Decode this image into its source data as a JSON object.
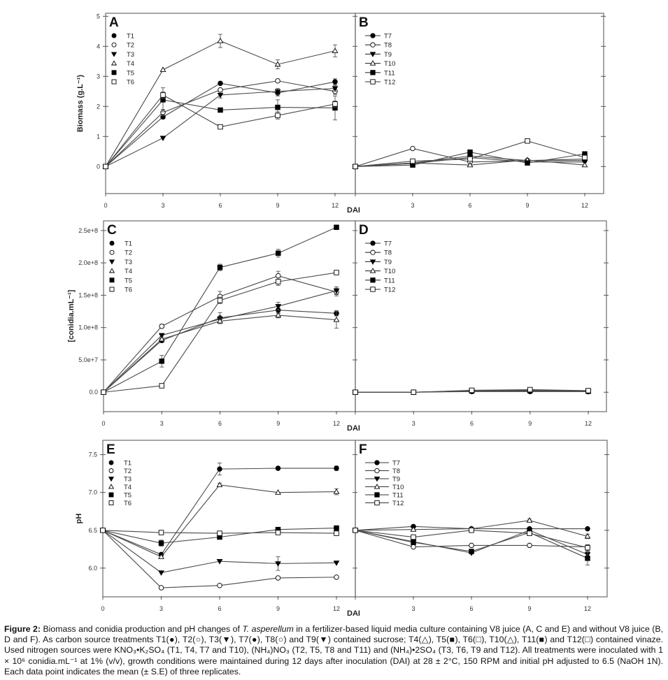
{
  "caption": {
    "label": "Figure 2:",
    "part1": " Biomass and conidia production and pH changes of ",
    "species": "T. asperellum",
    "part2": " in a fertilizer-based liquid media culture containing V8 juice (A, C and E) and without V8 juice (B, D and F). As carbon source treatments  T1(●), T2(○), T3(▼), T7(●), T8(○) and T9(▼) contained sucrose; T4(△), T5(■), T6(□), T10(△), T11(■) and T12(□) contained vinaze. Used nitrogen sources were KNO₃•K₂SO₄ (T1, T4, T7 and T10), (NH₄)NO₃ (T2, T5, T8 and T11) and (NH₄)•2SO₄ (T3, T6, T9 and T12). All treatments were inoculated with 1 × 10⁶ conidia.mL⁻¹ at 1% (v/v), growth conditions were maintained during 12 days after inoculation (DAI) at 28 ± 2°C, 150 RPM and initial pH adjusted to 6.5 (NaOH 1N). Each data point indicates the mean (± S.E) of three replicates."
  },
  "chart_data": [
    {
      "panel": "A",
      "type": "line",
      "title": "",
      "xlabel": "DAI",
      "ylabel": "Biomass (g.L⁻¹)",
      "x": [
        0,
        3,
        6,
        9,
        12
      ],
      "xticks": [
        "0",
        "3",
        "6",
        "9",
        "12"
      ],
      "ylim": [
        -0.9,
        5.1
      ],
      "yticks": [
        0,
        1,
        2,
        3,
        4,
        5
      ],
      "ytick_labels": [
        "0",
        "1",
        "2",
        "3",
        "4",
        "5"
      ],
      "legend": "top-left",
      "legend_style": "marker",
      "series": [
        {
          "name": "T1",
          "marker": "circle-filled",
          "values": [
            0,
            1.65,
            2.77,
            2.45,
            2.82
          ],
          "err": [
            0,
            0.05,
            0.05,
            0.1,
            0.1
          ]
        },
        {
          "name": "T2",
          "marker": "circle-open",
          "values": [
            0,
            1.8,
            2.55,
            2.85,
            2.5
          ],
          "err": [
            0,
            0.1,
            0.05,
            0.05,
            0.1
          ]
        },
        {
          "name": "T3",
          "marker": "triangle-down-filled",
          "values": [
            0,
            0.95,
            2.38,
            2.5,
            2.6
          ],
          "err": [
            0,
            0.03,
            0.1,
            0.1,
            0.1
          ]
        },
        {
          "name": "T4",
          "marker": "triangle-up-open",
          "values": [
            0,
            3.22,
            4.18,
            3.4,
            3.85
          ],
          "err": [
            0,
            0.03,
            0.22,
            0.15,
            0.2
          ]
        },
        {
          "name": "T5",
          "marker": "square-filled",
          "values": [
            0,
            2.22,
            1.88,
            1.97,
            1.95
          ],
          "err": [
            0,
            0.4,
            0.03,
            0.25,
            0.4
          ]
        },
        {
          "name": "T6",
          "marker": "square-open",
          "values": [
            0,
            2.38,
            1.32,
            1.7,
            2.08
          ],
          "err": [
            0,
            0.1,
            0.03,
            0.12,
            0.1
          ]
        }
      ]
    },
    {
      "panel": "B",
      "type": "line",
      "title": "",
      "xlabel": "DAI",
      "ylabel": "",
      "x": [
        0,
        3,
        6,
        9,
        12
      ],
      "xticks": [
        "",
        "3",
        "6",
        "9",
        "12"
      ],
      "ylim": [
        -0.9,
        5.1
      ],
      "yticks": [
        0,
        1,
        2,
        3,
        4,
        5
      ],
      "ytick_labels": [],
      "legend": "top-left",
      "legend_style": "line-marker",
      "series": [
        {
          "name": "T7",
          "marker": "circle-filled",
          "values": [
            0,
            0.12,
            0.35,
            0.2,
            0.25
          ]
        },
        {
          "name": "T8",
          "marker": "circle-open",
          "values": [
            0,
            0.6,
            0.15,
            0.2,
            0.2
          ]
        },
        {
          "name": "T9",
          "marker": "triangle-down-filled",
          "values": [
            0,
            0.1,
            0.3,
            0.15,
            0.15
          ]
        },
        {
          "name": "T10",
          "marker": "triangle-up-open",
          "values": [
            0,
            0.12,
            0.05,
            0.22,
            0.05
          ]
        },
        {
          "name": "T11",
          "marker": "square-filled",
          "values": [
            0,
            0.05,
            0.48,
            0.12,
            0.42
          ]
        },
        {
          "name": "T12",
          "marker": "square-open",
          "values": [
            0,
            0.18,
            0.25,
            0.85,
            0.3
          ]
        }
      ]
    },
    {
      "panel": "C",
      "type": "line",
      "title": "",
      "xlabel": "DAI",
      "ylabel": "[conidia.mL⁻¹]",
      "x": [
        0,
        3,
        6,
        9,
        12
      ],
      "xticks": [
        "0",
        "3",
        "6",
        "9",
        "12"
      ],
      "ylim": [
        -30000000.0,
        265000000.0
      ],
      "yticks": [
        0,
        50000000.0,
        100000000.0,
        150000000.0,
        200000000.0,
        250000000.0
      ],
      "ytick_labels": [
        "0.0",
        "5.0e+7",
        "1.0e+8",
        "1.5e+8",
        "2.0e+8",
        "2.5e+8"
      ],
      "legend": "top-left",
      "legend_style": "marker",
      "series": [
        {
          "name": "T1",
          "marker": "circle-filled",
          "values": [
            0,
            80000000.0,
            115000000.0,
            127000000.0,
            122000000.0
          ],
          "err": [
            0,
            3000000.0,
            8000000.0,
            5000000.0,
            4000000.0
          ]
        },
        {
          "name": "T2",
          "marker": "circle-open",
          "values": [
            0,
            102000000.0,
            148000000.0,
            180000000.0,
            155000000.0
          ],
          "err": [
            0,
            3000000.0,
            8000000.0,
            7000000.0,
            6000000.0
          ]
        },
        {
          "name": "T3",
          "marker": "triangle-down-filled",
          "values": [
            0,
            88000000.0,
            113000000.0,
            133000000.0,
            157000000.0
          ],
          "err": [
            0,
            3000000.0,
            4000000.0,
            6000000.0,
            6000000.0
          ]
        },
        {
          "name": "T4",
          "marker": "triangle-up-open",
          "values": [
            0,
            82000000.0,
            110000000.0,
            119000000.0,
            112000000.0
          ],
          "err": [
            0,
            3000000.0,
            4000000.0,
            4000000.0,
            13000000.0
          ]
        },
        {
          "name": "T5",
          "marker": "square-filled",
          "values": [
            0,
            48000000.0,
            193000000.0,
            215000000.0,
            255000000.0
          ],
          "err": [
            0,
            9000000.0,
            5000000.0,
            6000000.0,
            2000000.0
          ]
        },
        {
          "name": "T6",
          "marker": "square-open",
          "values": [
            0,
            10000000.0,
            142000000.0,
            171000000.0,
            185000000.0
          ],
          "err": [
            0,
            2000000.0,
            5000000.0,
            6000000.0,
            2000000.0
          ]
        }
      ]
    },
    {
      "panel": "D",
      "type": "line",
      "title": "",
      "xlabel": "DAI",
      "ylabel": "",
      "x": [
        0,
        3,
        6,
        9,
        12
      ],
      "xticks": [
        "",
        "3",
        "6",
        "9",
        "12"
      ],
      "ylim": [
        -30000000.0,
        265000000.0
      ],
      "yticks": [
        0,
        50000000.0,
        100000000.0,
        150000000.0,
        200000000.0,
        250000000.0
      ],
      "ytick_labels": [],
      "legend": "top-left",
      "legend_style": "line-marker",
      "series": [
        {
          "name": "T7",
          "marker": "circle-filled",
          "values": [
            0,
            0,
            1000000.0,
            1000000.0,
            1000000.0
          ]
        },
        {
          "name": "T8",
          "marker": "circle-open",
          "values": [
            0,
            0,
            2000000.0,
            2000000.0,
            2000000.0
          ]
        },
        {
          "name": "T9",
          "marker": "triangle-down-filled",
          "values": [
            0,
            0,
            1500000.0,
            1500000.0,
            1000000.0
          ]
        },
        {
          "name": "T10",
          "marker": "triangle-up-open",
          "values": [
            0,
            0,
            2500000.0,
            3000000.0,
            2000000.0
          ]
        },
        {
          "name": "T11",
          "marker": "square-filled",
          "values": [
            0,
            0,
            2000000.0,
            2500000.0,
            1500000.0
          ]
        },
        {
          "name": "T12",
          "marker": "square-open",
          "values": [
            0,
            0,
            3000000.0,
            4000000.0,
            2500000.0
          ]
        }
      ]
    },
    {
      "panel": "E",
      "type": "line",
      "title": "",
      "xlabel": "DAI",
      "ylabel": "pH",
      "x": [
        0,
        3,
        6,
        9,
        12
      ],
      "xticks": [
        "0",
        "3",
        "6",
        "9",
        "12"
      ],
      "ylim": [
        5.62,
        7.69
      ],
      "yticks": [
        6.0,
        6.5,
        7.0,
        7.5
      ],
      "ytick_labels": [
        "6.0",
        "6.5",
        "7.0",
        "7.5"
      ],
      "legend": "top-left",
      "legend_style": "marker",
      "series": [
        {
          "name": "T1",
          "marker": "circle-filled",
          "values": [
            6.5,
            6.18,
            7.31,
            7.32,
            7.32
          ],
          "err": [
            0,
            0.01,
            0.08,
            0.01,
            0.03
          ]
        },
        {
          "name": "T2",
          "marker": "circle-open",
          "values": [
            6.5,
            5.74,
            5.77,
            5.87,
            5.88
          ],
          "err": [
            0,
            0.01,
            0.01,
            0.01,
            0.01
          ]
        },
        {
          "name": "T3",
          "marker": "triangle-down-filled",
          "values": [
            6.5,
            5.94,
            6.09,
            6.06,
            6.07
          ],
          "err": [
            0,
            0.01,
            0.01,
            0.09,
            0.01
          ]
        },
        {
          "name": "T4",
          "marker": "triangle-up-open",
          "values": [
            6.5,
            6.15,
            7.1,
            7.0,
            7.01
          ],
          "err": [
            0,
            0.01,
            0.02,
            0.01,
            0.04
          ]
        },
        {
          "name": "T5",
          "marker": "square-filled",
          "values": [
            6.5,
            6.33,
            6.41,
            6.51,
            6.53
          ],
          "err": [
            0,
            0.04,
            0.01,
            0.01,
            0.01
          ]
        },
        {
          "name": "T6",
          "marker": "square-open",
          "values": [
            6.5,
            6.47,
            6.46,
            6.47,
            6.46
          ],
          "err": [
            0,
            0.01,
            0.01,
            0.01,
            0.01
          ]
        }
      ]
    },
    {
      "panel": "F",
      "type": "line",
      "title": "",
      "xlabel": "DAI",
      "ylabel": "",
      "x": [
        0,
        3,
        6,
        9,
        12
      ],
      "xticks": [
        "",
        "3",
        "6",
        "9",
        "12"
      ],
      "ylim": [
        5.62,
        7.69
      ],
      "yticks": [
        6.0,
        6.5,
        7.0,
        7.5
      ],
      "ytick_labels": [],
      "legend": "top-left",
      "legend_style": "line-marker",
      "series": [
        {
          "name": "T7",
          "marker": "circle-filled",
          "values": [
            6.5,
            6.55,
            6.52,
            6.52,
            6.52
          ],
          "err": [
            0,
            0.01,
            0.01,
            0.01,
            0.01
          ]
        },
        {
          "name": "T8",
          "marker": "circle-open",
          "values": [
            6.5,
            6.28,
            6.3,
            6.3,
            6.28
          ],
          "err": [
            0,
            0.01,
            0.01,
            0.01,
            0.01
          ]
        },
        {
          "name": "T9",
          "marker": "triangle-down-filled",
          "values": [
            6.5,
            6.35,
            6.2,
            6.5,
            6.18
          ],
          "err": [
            0,
            0.01,
            0.01,
            0.01,
            0.03
          ]
        },
        {
          "name": "T10",
          "marker": "triangle-up-open",
          "values": [
            6.5,
            6.51,
            6.52,
            6.63,
            6.42
          ],
          "err": [
            0,
            0.01,
            0.01,
            0.02,
            0.03
          ]
        },
        {
          "name": "T11",
          "marker": "square-filled",
          "values": [
            6.5,
            6.34,
            6.22,
            6.47,
            6.13
          ],
          "err": [
            0,
            0.01,
            0.01,
            0.01,
            0.09
          ]
        },
        {
          "name": "T12",
          "marker": "square-open",
          "values": [
            6.5,
            6.41,
            6.5,
            6.46,
            6.27
          ],
          "err": [
            0,
            0.02,
            0.01,
            0.01,
            0.04
          ]
        }
      ]
    }
  ]
}
